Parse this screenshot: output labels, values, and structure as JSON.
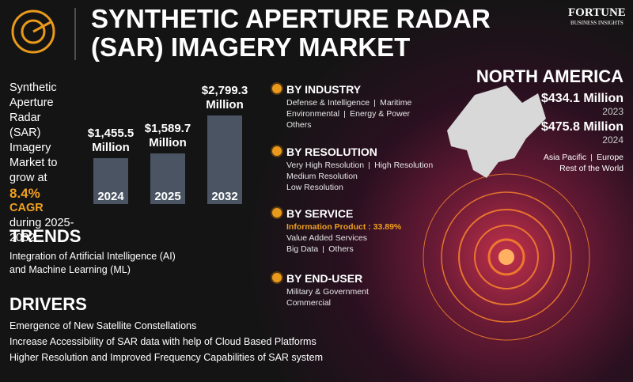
{
  "header": {
    "title_lines": [
      "SYNTHETIC APERTURE RADAR",
      "(SAR) IMAGERY MARKET"
    ],
    "logo": {
      "name": "FORTUNE",
      "tagline": "BUSINESS INSIGHTS"
    }
  },
  "growth": {
    "text": "Synthetic Aperture Radar (SAR) Imagery Market to grow at",
    "rate": "8.4%",
    "cagr": "CAGR",
    "period": "during 2025-2032"
  },
  "chart_data": {
    "type": "bar",
    "categories": [
      "2024",
      "2025",
      "2032"
    ],
    "values": [
      1455.5,
      1589.7,
      2799.3
    ],
    "value_labels": [
      "$1,455.5 Million",
      "$1,589.7 Million",
      "$2,799.3 Million"
    ],
    "color": "#4a5463"
  },
  "trends": {
    "title": "TRENDS",
    "items": [
      "Integration of Artificial Intelligence (AI) and Machine Learning (ML)"
    ]
  },
  "drivers": {
    "title": "DRIVERS",
    "items": [
      "Emergence of New Satellite Constellations",
      "Increase Accessibility of SAR data with help of Cloud Based Platforms",
      "Higher Resolution and Improved Frequency Capabilities of SAR system"
    ]
  },
  "segments": [
    {
      "title": "BY INDUSTRY",
      "rows": [
        [
          "Defense & Intelligence",
          "Maritime"
        ],
        [
          "Environmental",
          "Energy & Power"
        ],
        [
          "Others"
        ]
      ]
    },
    {
      "title": "BY RESOLUTION",
      "rows": [
        [
          "Very High Resolution",
          "High Resolution"
        ],
        [
          "Medium Resolution"
        ],
        [
          "Low Resolution"
        ]
      ]
    },
    {
      "title": "BY SERVICE",
      "highlight": "Information Product : 33.89%",
      "rows": [
        [
          "Value Added Services"
        ],
        [
          "Big Data",
          "Others"
        ]
      ]
    },
    {
      "title": "BY END-USER",
      "rows": [
        [
          "Military & Government"
        ],
        [
          "Commercial"
        ]
      ]
    }
  ],
  "region": {
    "title": "NORTH AMERICA",
    "stats": [
      {
        "value": "$434.1 Million",
        "year": "2023"
      },
      {
        "value": "$475.8 Million",
        "year": "2024"
      }
    ],
    "others": [
      [
        "Asia Pacific",
        "Europe"
      ],
      [
        "Rest of the World"
      ]
    ]
  }
}
